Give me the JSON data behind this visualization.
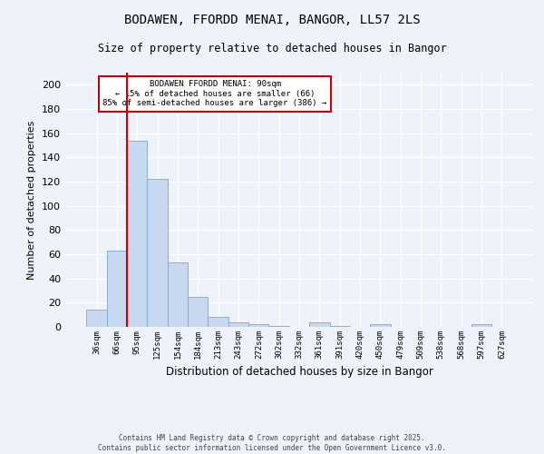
{
  "title1": "BODAWEN, FFORDD MENAI, BANGOR, LL57 2LS",
  "title2": "Size of property relative to detached houses in Bangor",
  "xlabel": "Distribution of detached houses by size in Bangor",
  "ylabel": "Number of detached properties",
  "categories": [
    "36sqm",
    "66sqm",
    "95sqm",
    "125sqm",
    "154sqm",
    "184sqm",
    "213sqm",
    "243sqm",
    "272sqm",
    "302sqm",
    "332sqm",
    "361sqm",
    "391sqm",
    "420sqm",
    "450sqm",
    "479sqm",
    "509sqm",
    "538sqm",
    "568sqm",
    "597sqm",
    "627sqm"
  ],
  "values": [
    14,
    63,
    154,
    122,
    53,
    25,
    8,
    4,
    2,
    1,
    0,
    4,
    1,
    0,
    2,
    0,
    0,
    0,
    0,
    2,
    0
  ],
  "bar_color": "#c8d8f0",
  "bar_edge_color": "#7aaad0",
  "background_color": "#edf2fb",
  "grid_color": "#ffffff",
  "red_line_index": 2,
  "annotation_title": "BODAWEN FFORDD MENAI: 90sqm",
  "annotation_line1": "← 15% of detached houses are smaller (66)",
  "annotation_line2": "85% of semi-detached houses are larger (386) →",
  "annotation_box_color": "#ffffff",
  "annotation_border_color": "#cc0000",
  "red_line_color": "#cc0000",
  "footer1": "Contains HM Land Registry data © Crown copyright and database right 2025.",
  "footer2": "Contains public sector information licensed under the Open Government Licence v3.0.",
  "ylim": [
    0,
    210
  ],
  "yticks": [
    0,
    20,
    40,
    60,
    80,
    100,
    120,
    140,
    160,
    180,
    200
  ]
}
